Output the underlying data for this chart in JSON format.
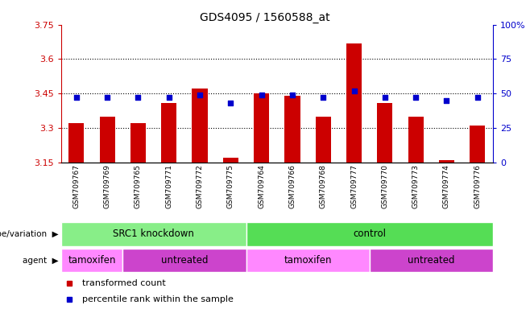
{
  "title": "GDS4095 / 1560588_at",
  "samples": [
    "GSM709767",
    "GSM709769",
    "GSM709765",
    "GSM709771",
    "GSM709772",
    "GSM709775",
    "GSM709764",
    "GSM709766",
    "GSM709768",
    "GSM709777",
    "GSM709770",
    "GSM709773",
    "GSM709774",
    "GSM709776"
  ],
  "bar_values": [
    3.32,
    3.35,
    3.32,
    3.41,
    3.47,
    3.17,
    3.45,
    3.44,
    3.35,
    3.67,
    3.41,
    3.35,
    3.16,
    3.31
  ],
  "dot_values": [
    47,
    47,
    47,
    47,
    49,
    43,
    49,
    49,
    47,
    52,
    47,
    47,
    45,
    47
  ],
  "ylim_left": [
    3.15,
    3.75
  ],
  "ylim_right": [
    0,
    100
  ],
  "yticks_left": [
    3.15,
    3.3,
    3.45,
    3.6,
    3.75
  ],
  "yticks_right": [
    0,
    25,
    50,
    75,
    100
  ],
  "ytick_labels_left": [
    "3.15",
    "3.3",
    "3.45",
    "3.6",
    "3.75"
  ],
  "ytick_labels_right": [
    "0",
    "25",
    "50",
    "75",
    "100%"
  ],
  "hlines": [
    3.3,
    3.45,
    3.6
  ],
  "bar_color": "#cc0000",
  "dot_color": "#0000cc",
  "bar_width": 0.5,
  "genotype_groups": [
    {
      "label": "SRC1 knockdown",
      "start": 0,
      "end": 6,
      "color": "#88ee88"
    },
    {
      "label": "control",
      "start": 6,
      "end": 14,
      "color": "#55dd55"
    }
  ],
  "agent_groups": [
    {
      "label": "tamoxifen",
      "start": 0,
      "end": 2,
      "color": "#ff88ff"
    },
    {
      "label": "untreated",
      "start": 2,
      "end": 6,
      "color": "#cc44cc"
    },
    {
      "label": "tamoxifen",
      "start": 6,
      "end": 10,
      "color": "#ff88ff"
    },
    {
      "label": "untreated",
      "start": 10,
      "end": 14,
      "color": "#cc44cc"
    }
  ],
  "legend_items": [
    {
      "label": "transformed count",
      "color": "#cc0000"
    },
    {
      "label": "percentile rank within the sample",
      "color": "#0000cc"
    }
  ],
  "left_label_color": "#cc0000",
  "right_label_color": "#0000cc"
}
